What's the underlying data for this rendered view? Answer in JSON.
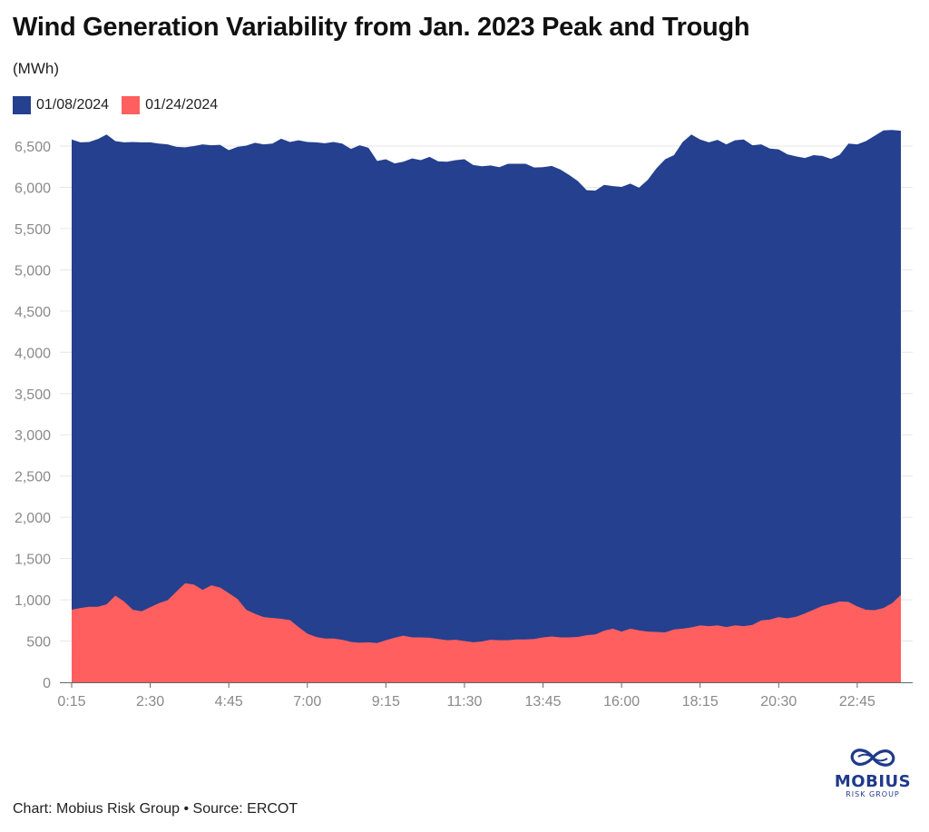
{
  "header": {
    "title": "Wind Generation Variability from Jan. 2023 Peak and Trough",
    "subtitle": "(MWh)"
  },
  "colors": {
    "series_0108": "#24408e",
    "series_0124": "#ff5f5f",
    "grid": "#e6e6e6",
    "axis": "#666666"
  },
  "footer": {
    "credit": "Chart: Mobius Risk Group • Source: ERCOT"
  },
  "logo": {
    "name": "MOBIUS",
    "sub": "RISK GROUP",
    "icon": "infinity-knot-icon"
  },
  "chart_data": {
    "type": "area",
    "title": "Wind Generation Variability from Jan. 2023 Peak and Trough",
    "ylabel": "(MWh)",
    "ylim": [
      0,
      6500
    ],
    "yticks": [
      0,
      500,
      1000,
      1500,
      2000,
      2500,
      3000,
      3500,
      4000,
      4500,
      5000,
      5500,
      6000,
      6500
    ],
    "ytick_labels": [
      "0",
      "500",
      "1,000",
      "1,500",
      "2,000",
      "2,500",
      "3,000",
      "3,500",
      "4,000",
      "4,500",
      "5,000",
      "5,500",
      "6,000",
      "6,500"
    ],
    "xtick_labels": [
      "0:15",
      "2:30",
      "4:45",
      "7:00",
      "9:15",
      "11:30",
      "13:45",
      "16:00",
      "18:15",
      "20:30",
      "22:45"
    ],
    "x_interval_minutes": 15,
    "x_start": "0:15",
    "x_end": "24:00",
    "x_tick_every": 9,
    "grid": true,
    "legend_position": "top-left",
    "series": [
      {
        "name": "01/08/2024",
        "color": "#24408e",
        "values": [
          6580,
          6545,
          6550,
          6585,
          6640,
          6560,
          6545,
          6550,
          6545,
          6545,
          6530,
          6520,
          6490,
          6485,
          6500,
          6520,
          6510,
          6515,
          6450,
          6490,
          6505,
          6540,
          6520,
          6530,
          6590,
          6550,
          6570,
          6550,
          6545,
          6535,
          6550,
          6530,
          6465,
          6510,
          6480,
          6320,
          6340,
          6290,
          6310,
          6350,
          6330,
          6370,
          6315,
          6310,
          6330,
          6340,
          6270,
          6255,
          6265,
          6245,
          6285,
          6285,
          6285,
          6240,
          6245,
          6260,
          6215,
          6150,
          6075,
          5965,
          5960,
          6030,
          6015,
          6005,
          6045,
          5995,
          6090,
          6230,
          6340,
          6390,
          6550,
          6640,
          6580,
          6545,
          6575,
          6520,
          6570,
          6580,
          6510,
          6520,
          6470,
          6460,
          6400,
          6375,
          6355,
          6390,
          6380,
          6345,
          6395,
          6530,
          6520,
          6560,
          6625,
          6690,
          6695,
          6685
        ]
      },
      {
        "name": "01/24/2024",
        "color": "#ff5f5f",
        "values": [
          880,
          900,
          915,
          915,
          945,
          1050,
          980,
          880,
          860,
          910,
          960,
          995,
          1100,
          1200,
          1185,
          1120,
          1175,
          1150,
          1080,
          1010,
          880,
          830,
          790,
          780,
          770,
          755,
          670,
          590,
          550,
          530,
          530,
          515,
          490,
          480,
          485,
          475,
          510,
          540,
          565,
          545,
          545,
          540,
          525,
          510,
          515,
          500,
          485,
          495,
          515,
          510,
          510,
          520,
          520,
          525,
          545,
          555,
          545,
          545,
          550,
          570,
          580,
          625,
          650,
          615,
          650,
          630,
          615,
          610,
          605,
          640,
          650,
          665,
          690,
          680,
          690,
          670,
          690,
          680,
          695,
          750,
          760,
          790,
          775,
          795,
          835,
          880,
          925,
          950,
          980,
          975,
          920,
          880,
          875,
          900,
          960,
          1060
        ]
      }
    ]
  }
}
